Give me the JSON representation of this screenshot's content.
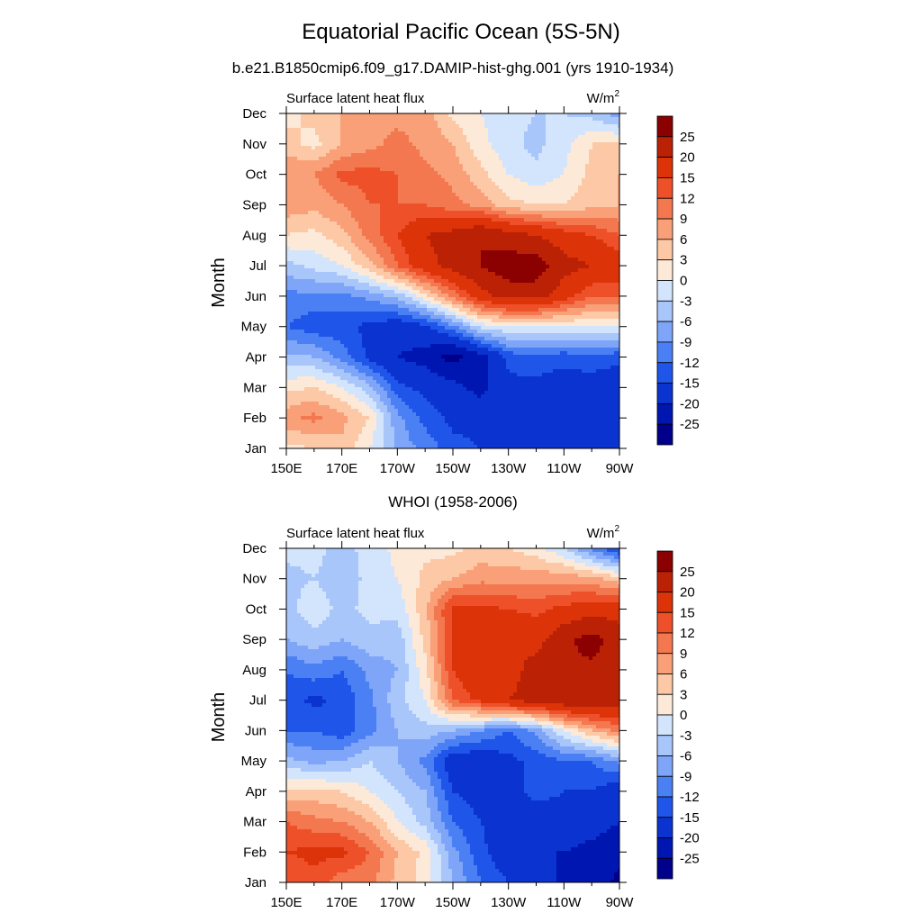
{
  "title": "Equatorial Pacific Ocean (5S-5N)",
  "subtitle": "b.e21.B1850cmip6.f09_g17.DAMIP-hist-ghg.001 (yrs 1910-1934)",
  "colors": {
    "levels": [
      "#00008b",
      "#0016b0",
      "#0a33d0",
      "#1f55e8",
      "#4b80f4",
      "#7ea5f8",
      "#a9c6fb",
      "#d3e4fd",
      "#fde9d7",
      "#fcc8a6",
      "#f9a079",
      "#f4784f",
      "#ee5129",
      "#dd3308",
      "#bb2205",
      "#8b0000"
    ]
  },
  "chart_data": [
    {
      "type": "heatmap",
      "panel_title": "",
      "left_label": "Surface latent heat flux",
      "units": "W/m",
      "units_sup": "2",
      "ylabel": "Month",
      "xlabel": "",
      "x_ticks": [
        "150E",
        "170E",
        "170W",
        "150W",
        "130W",
        "110W",
        "90W"
      ],
      "x_values_deg_east": [
        150,
        170,
        190,
        210,
        230,
        250,
        270
      ],
      "y_ticks": [
        "Jan",
        "Feb",
        "Mar",
        "Apr",
        "May",
        "Jun",
        "Jul",
        "Aug",
        "Sep",
        "Oct",
        "Nov",
        "Dec"
      ],
      "colorbar_labels": [
        "25",
        "20",
        "15",
        "12",
        "9",
        "6",
        "3",
        "0",
        "-3",
        "-6",
        "-9",
        "-12",
        "-15",
        "-20",
        "-25"
      ],
      "field_x": [
        150,
        160,
        170,
        180,
        190,
        200,
        210,
        220,
        230,
        240,
        250,
        260,
        270
      ],
      "field_rows": [
        [
          2,
          3,
          5,
          0,
          -7,
          -10,
          -14,
          -15,
          -16,
          -18,
          -20,
          -20,
          -20
        ],
        [
          8,
          10,
          7,
          3,
          -8,
          -13,
          -16,
          -16,
          -15,
          -19,
          -18,
          -17,
          -18
        ],
        [
          2,
          3,
          0,
          -5,
          -14,
          -16,
          -18,
          -22,
          -16,
          -16,
          -17,
          -17,
          -18
        ],
        [
          -5,
          -6,
          -10,
          -16,
          -20,
          -22,
          -27,
          -22,
          -14,
          -13,
          -14,
          -13,
          -14
        ],
        [
          -12,
          -14,
          -14,
          -16,
          -18,
          -16,
          -10,
          -2,
          0,
          0,
          0,
          0,
          0
        ],
        [
          -10,
          -10,
          -10,
          -8,
          -5,
          2,
          10,
          18,
          22,
          22,
          17,
          12,
          12
        ],
        [
          -4,
          -2,
          0,
          5,
          12,
          18,
          22,
          25,
          28,
          28,
          22,
          20,
          18
        ],
        [
          3,
          2,
          5,
          10,
          15,
          20,
          22,
          25,
          22,
          20,
          17,
          15,
          12
        ],
        [
          8,
          7,
          9,
          12,
          12,
          12,
          10,
          8,
          4,
          3,
          3,
          5,
          6
        ],
        [
          9,
          9,
          13,
          13,
          12,
          10,
          8,
          4,
          0,
          -2,
          0,
          4,
          6
        ],
        [
          4,
          2,
          6,
          8,
          10,
          8,
          6,
          1,
          -2,
          -4,
          -1,
          3,
          4
        ],
        [
          2,
          4,
          6,
          8,
          8,
          8,
          2,
          0,
          -2,
          -3,
          -3,
          -4,
          -8
        ]
      ]
    },
    {
      "type": "heatmap",
      "panel_title": "WHOI (1958-2006)",
      "left_label": "Surface latent heat flux",
      "units": "W/m",
      "units_sup": "2",
      "ylabel": "Month",
      "xlabel": "",
      "x_ticks": [
        "150E",
        "170E",
        "170W",
        "150W",
        "130W",
        "110W",
        "90W"
      ],
      "x_values_deg_east": [
        150,
        170,
        190,
        210,
        230,
        250,
        270
      ],
      "y_ticks": [
        "Jan",
        "Feb",
        "Mar",
        "Apr",
        "May",
        "Jun",
        "Jul",
        "Aug",
        "Sep",
        "Oct",
        "Nov",
        "Dec"
      ],
      "colorbar_labels": [
        "25",
        "20",
        "15",
        "12",
        "9",
        "6",
        "3",
        "0",
        "-3",
        "-6",
        "-9",
        "-12",
        "-15",
        "-20",
        "-25"
      ],
      "field_x": [
        150,
        160,
        170,
        180,
        190,
        200,
        210,
        220,
        230,
        240,
        250,
        260,
        270
      ],
      "field_rows": [
        [
          12,
          14,
          10,
          10,
          5,
          2,
          -6,
          -12,
          -15,
          -16,
          -22,
          -23,
          -26
        ],
        [
          15,
          16,
          16,
          12,
          6,
          2,
          -8,
          -14,
          -18,
          -20,
          -20,
          -22,
          -24
        ],
        [
          12,
          10,
          9,
          6,
          0,
          -4,
          -12,
          -15,
          -17,
          -17,
          -16,
          -17,
          -20
        ],
        [
          4,
          4,
          3,
          0,
          -3,
          -6,
          -15,
          -17,
          -16,
          -14,
          -15,
          -15,
          -18
        ],
        [
          -5,
          -7,
          -6,
          -3,
          -6,
          -10,
          -18,
          -18,
          -16,
          -14,
          -12,
          -12,
          -8
        ],
        [
          -12,
          -12,
          -14,
          -10,
          -6,
          -4,
          -6,
          -9,
          -12,
          -8,
          0,
          6,
          10
        ],
        [
          -13,
          -16,
          -14,
          -10,
          -4,
          0,
          12,
          16,
          20,
          22,
          24,
          24,
          22
        ],
        [
          -12,
          -10,
          -12,
          -8,
          -6,
          2,
          15,
          20,
          18,
          22,
          24,
          24,
          24
        ],
        [
          -6,
          -4,
          -6,
          -4,
          -5,
          4,
          16,
          20,
          20,
          18,
          24,
          27,
          22
        ],
        [
          -4,
          -1,
          -4,
          -2,
          -2,
          5,
          16,
          16,
          15,
          14,
          16,
          18,
          18
        ],
        [
          -4,
          -3,
          -5,
          -2,
          0,
          4,
          6,
          8,
          8,
          8,
          8,
          7,
          4
        ],
        [
          -2,
          -2,
          -4,
          -2,
          1,
          2,
          2,
          4,
          3,
          1,
          -3,
          -10,
          -16
        ]
      ]
    }
  ]
}
